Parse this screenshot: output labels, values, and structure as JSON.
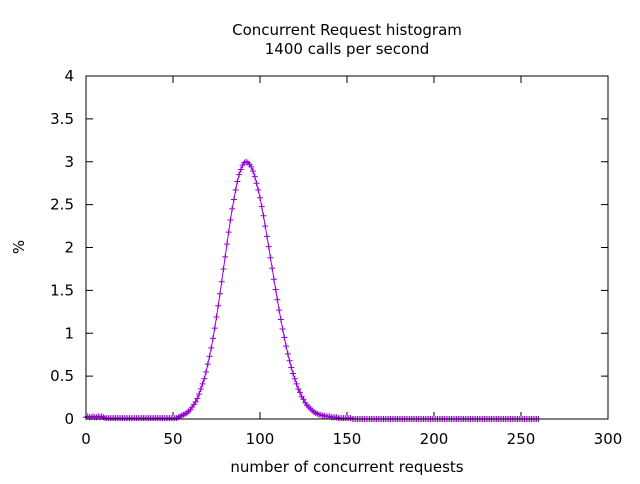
{
  "chart_data": {
    "type": "line",
    "title": "Concurrent Request histogram",
    "subtitle": "1400 calls per second",
    "xlabel": "number of concurrent requests",
    "ylabel": "%",
    "xlim": [
      0,
      300
    ],
    "ylim": [
      0,
      4
    ],
    "xticks": [
      "0",
      "50",
      "100",
      "150",
      "200",
      "250",
      "300"
    ],
    "yticks": [
      "0",
      "0.5",
      "1",
      "1.5",
      "2",
      "2.5",
      "3",
      "3.5",
      "4"
    ],
    "grid": false,
    "legend": "none",
    "marker": "plus",
    "color": "#9400d3",
    "x_start": 0,
    "x_step": 1,
    "values": [
      0.02,
      0.03,
      0.02,
      0.02,
      0.03,
      0.02,
      0.02,
      0.03,
      0.02,
      0.03,
      0.02,
      0.01,
      0.01,
      0.01,
      0.01,
      0.01,
      0.01,
      0.01,
      0.01,
      0.01,
      0.01,
      0.01,
      0.01,
      0.01,
      0.01,
      0.01,
      0.01,
      0.01,
      0.01,
      0.01,
      0.01,
      0.01,
      0.01,
      0.01,
      0.01,
      0.01,
      0.01,
      0.01,
      0.01,
      0.01,
      0.01,
      0.01,
      0.01,
      0.01,
      0.01,
      0.01,
      0.01,
      0.01,
      0.01,
      0.01,
      0.01,
      0.01,
      0.01,
      0.02,
      0.03,
      0.04,
      0.05,
      0.06,
      0.07,
      0.09,
      0.11,
      0.14,
      0.17,
      0.2,
      0.24,
      0.29,
      0.35,
      0.41,
      0.47,
      0.55,
      0.64,
      0.73,
      0.83,
      0.94,
      1.06,
      1.19,
      1.32,
      1.46,
      1.6,
      1.75,
      1.89,
      2.04,
      2.18,
      2.32,
      2.45,
      2.56,
      2.67,
      2.77,
      2.85,
      2.91,
      2.96,
      2.99,
      3.0,
      2.99,
      2.97,
      2.94,
      2.89,
      2.83,
      2.75,
      2.67,
      2.58,
      2.48,
      2.37,
      2.25,
      2.13,
      2.01,
      1.88,
      1.76,
      1.63,
      1.51,
      1.39,
      1.27,
      1.16,
      1.05,
      0.95,
      0.85,
      0.76,
      0.68,
      0.6,
      0.53,
      0.47,
      0.41,
      0.35,
      0.31,
      0.26,
      0.23,
      0.19,
      0.16,
      0.14,
      0.12,
      0.1,
      0.08,
      0.07,
      0.06,
      0.05,
      0.05,
      0.04,
      0.04,
      0.03,
      0.03,
      0.03,
      0.02,
      0.02,
      0.02,
      0.02,
      0.01,
      0.01,
      0.01,
      0.01,
      0.01,
      0.01,
      0.01,
      0.01,
      0,
      0,
      0,
      0,
      0,
      0,
      0,
      0,
      0,
      0,
      0,
      0,
      0,
      0,
      0,
      0,
      0,
      0,
      0,
      0,
      0,
      0,
      0,
      0,
      0,
      0,
      0,
      0,
      0,
      0,
      0,
      0,
      0,
      0,
      0,
      0,
      0,
      0,
      0,
      0,
      0,
      0,
      0,
      0,
      0,
      0,
      0,
      0,
      0,
      0,
      0,
      0,
      0,
      0,
      0,
      0,
      0,
      0,
      0,
      0,
      0,
      0,
      0,
      0,
      0,
      0,
      0,
      0,
      0,
      0,
      0,
      0,
      0,
      0,
      0,
      0,
      0,
      0,
      0,
      0,
      0,
      0,
      0,
      0,
      0,
      0,
      0,
      0,
      0,
      0,
      0,
      0,
      0,
      0,
      0,
      0,
      0,
      0,
      0,
      0,
      0,
      0,
      0,
      0,
      0,
      0,
      0,
      0
    ]
  }
}
